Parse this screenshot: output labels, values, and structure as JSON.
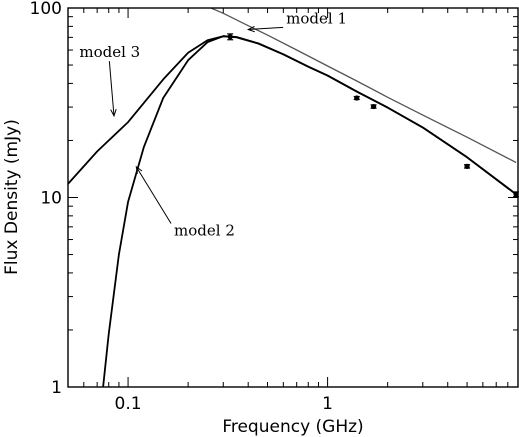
{
  "chart_data": {
    "type": "line",
    "xlabel": "Frequency (GHz)",
    "ylabel": "Flux Density (mJy)",
    "xscale": "log",
    "yscale": "log",
    "xlim": [
      0.05,
      9.0
    ],
    "ylim": [
      1,
      100
    ],
    "grid": false,
    "x_ticks": [
      {
        "value": 0.1,
        "label": "0.1"
      },
      {
        "value": 1,
        "label": "1"
      }
    ],
    "y_ticks": [
      {
        "value": 1,
        "label": "1"
      },
      {
        "value": 10,
        "label": "10"
      },
      {
        "value": 100,
        "label": "100"
      }
    ],
    "measurements": {
      "x": [
        0.325,
        1.4,
        1.7,
        5.0,
        8.8
      ],
      "y": [
        70.5,
        33.5,
        30.2,
        14.6,
        10.4
      ],
      "yerr": [
        2.5,
        0.6,
        0.6,
        0.3,
        0.3
      ]
    },
    "series": [
      {
        "model": "model 1",
        "color": "#555555",
        "x": [
          0.26,
          0.3,
          0.4,
          0.5,
          0.7,
          1.0,
          1.4,
          2.0,
          3.0,
          5.0,
          8.8
        ],
        "y": [
          100,
          93.8,
          80.6,
          71.9,
          60.0,
          49.4,
          41.2,
          33.8,
          27.2,
          20.8,
          15.3
        ]
      },
      {
        "model": "model 2",
        "color": "#000000",
        "x": [
          0.075,
          0.08,
          0.09,
          0.1,
          0.12,
          0.15,
          0.2,
          0.25,
          0.3,
          0.35,
          0.45,
          0.6,
          0.8,
          1.0,
          1.4,
          2.0,
          3.0,
          5.0,
          8.8
        ],
        "y": [
          1.0,
          1.9,
          5.0,
          9.5,
          18.5,
          33.5,
          53.0,
          66.0,
          71.0,
          70.0,
          65.0,
          57.0,
          49.0,
          44.0,
          36.2,
          29.8,
          23.4,
          16.3,
          10.4
        ]
      },
      {
        "model": "model 3",
        "color": "#000000",
        "x": [
          0.05,
          0.07,
          0.1,
          0.15,
          0.2,
          0.25,
          0.3,
          0.35,
          0.45,
          0.6,
          0.8,
          1.0,
          1.4,
          2.0,
          3.0,
          5.0,
          8.8
        ],
        "y": [
          11.8,
          17.5,
          25.0,
          42.0,
          58.0,
          67.5,
          71.0,
          70.3,
          65.0,
          57.0,
          49.0,
          44.0,
          36.2,
          29.8,
          23.4,
          16.3,
          10.4
        ]
      }
    ],
    "annotations": [
      {
        "text": "model 1",
        "text_at": [
          0.62,
          83
        ],
        "arrow_to": [
          0.4,
          77
        ]
      },
      {
        "text": "model 3",
        "text_at": [
          0.057,
          55
        ],
        "arrow_to": [
          0.085,
          27
        ]
      },
      {
        "text": "model 2",
        "text_at": [
          0.17,
          6.3
        ],
        "arrow_to": [
          0.11,
          14.5
        ]
      }
    ]
  }
}
